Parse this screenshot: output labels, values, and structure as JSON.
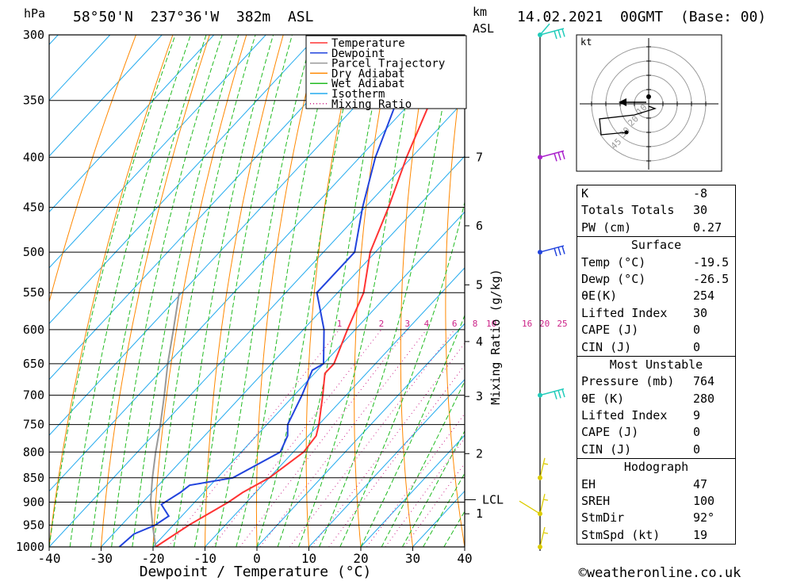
{
  "header": {
    "location": "58°50'N  237°36'W  382m  ASL",
    "datetime": "14.02.2021  00GMT  (Base: 00)",
    "hpa_label": "hPa",
    "km_label": "km",
    "asl_label": "ASL"
  },
  "chart_data": {
    "type": "skew-t",
    "xlabel": "Dewpoint / Temperature (°C)",
    "ylabel_right": "Mixing Ratio (g/kg)",
    "x_ticks": [
      -40,
      -30,
      -20,
      -10,
      0,
      10,
      20,
      30,
      40
    ],
    "pressure_levels": [
      300,
      350,
      400,
      450,
      500,
      550,
      600,
      650,
      700,
      750,
      800,
      850,
      900,
      950,
      1000
    ],
    "km_ticks": [
      {
        "label": "7",
        "p": 400
      },
      {
        "label": "6",
        "p": 470
      },
      {
        "label": "5",
        "p": 540
      },
      {
        "label": "4",
        "p": 617
      },
      {
        "label": "3",
        "p": 702
      },
      {
        "label": "2",
        "p": 803
      },
      {
        "label": "1",
        "p": 925
      }
    ],
    "lcl": {
      "label": "LCL",
      "p": 895
    },
    "mixing_ratio_labels": [
      "1",
      "2",
      "3",
      "4",
      "6",
      "8",
      "10",
      "16",
      "20",
      "25"
    ],
    "legend": [
      {
        "name": "Temperature",
        "color": "#ff3333"
      },
      {
        "name": "Dewpoint",
        "color": "#2244dd"
      },
      {
        "name": "Parcel Trajectory",
        "color": "#999999"
      },
      {
        "name": "Dry Adiabat",
        "color": "#ff8800"
      },
      {
        "name": "Wet Adiabat",
        "color": "#22bb22"
      },
      {
        "name": "Isotherm",
        "color": "#22aaee"
      },
      {
        "name": "Mixing Ratio",
        "color": "#cc2288"
      }
    ],
    "temperature": [
      {
        "p": 1000,
        "t": -19.5
      },
      {
        "p": 950,
        "t": -17
      },
      {
        "p": 900,
        "t": -13.5
      },
      {
        "p": 880,
        "t": -12.5
      },
      {
        "p": 850,
        "t": -10
      },
      {
        "p": 800,
        "t": -8
      },
      {
        "p": 770,
        "t": -8.5
      },
      {
        "p": 750,
        "t": -10
      },
      {
        "p": 700,
        "t": -14.5
      },
      {
        "p": 665,
        "t": -18
      },
      {
        "p": 650,
        "t": -18
      },
      {
        "p": 600,
        "t": -21.5
      },
      {
        "p": 550,
        "t": -25
      },
      {
        "p": 500,
        "t": -31
      },
      {
        "p": 450,
        "t": -35.5
      },
      {
        "p": 400,
        "t": -41
      },
      {
        "p": 350,
        "t": -46.5
      },
      {
        "p": 320,
        "t": -50
      },
      {
        "p": 300,
        "t": -54
      }
    ],
    "dewpoint": [
      {
        "p": 1000,
        "t": -26.5
      },
      {
        "p": 970,
        "t": -26
      },
      {
        "p": 950,
        "t": -23.5
      },
      {
        "p": 930,
        "t": -22.5
      },
      {
        "p": 905,
        "t": -26
      },
      {
        "p": 880,
        "t": -24.5
      },
      {
        "p": 865,
        "t": -24
      },
      {
        "p": 850,
        "t": -17
      },
      {
        "p": 800,
        "t": -12.5
      },
      {
        "p": 770,
        "t": -14
      },
      {
        "p": 750,
        "t": -16
      },
      {
        "p": 700,
        "t": -18.5
      },
      {
        "p": 660,
        "t": -21
      },
      {
        "p": 650,
        "t": -20
      },
      {
        "p": 600,
        "t": -26
      },
      {
        "p": 550,
        "t": -34
      },
      {
        "p": 500,
        "t": -34
      },
      {
        "p": 450,
        "t": -40.5
      },
      {
        "p": 400,
        "t": -47
      },
      {
        "p": 350,
        "t": -53
      },
      {
        "p": 300,
        "t": -60
      }
    ],
    "parcel": [
      {
        "p": 1000,
        "t": -19.5
      },
      {
        "p": 950,
        "t": -24
      },
      {
        "p": 900,
        "t": -28.5
      },
      {
        "p": 850,
        "t": -32.5
      },
      {
        "p": 800,
        "t": -36.5
      },
      {
        "p": 750,
        "t": -40.5
      },
      {
        "p": 700,
        "t": -45
      },
      {
        "p": 650,
        "t": -50
      },
      {
        "p": 600,
        "t": -55
      },
      {
        "p": 550,
        "t": -60.5
      }
    ],
    "wind_barbs": [
      {
        "p": 300,
        "color": "#22ccbb"
      },
      {
        "p": 400,
        "color": "#aa22cc"
      },
      {
        "p": 500,
        "color": "#2244dd"
      },
      {
        "p": 700,
        "color": "#22ccbb"
      },
      {
        "p": 850,
        "color": "#ddcc00"
      },
      {
        "p": 925,
        "color": "#ddcc00"
      },
      {
        "p": 1000,
        "color": "#ddcc00"
      }
    ]
  },
  "hodograph": {
    "unit_label": "kt",
    "ring_labels": [
      "10",
      "20",
      "30",
      "45"
    ]
  },
  "indices": {
    "k_label": "K",
    "k_value": "-8",
    "tt_label": "Totals Totals",
    "tt_value": "30",
    "pw_label": "PW (cm)",
    "pw_value": "0.27"
  },
  "surface": {
    "title": "Surface",
    "rows": [
      {
        "label": "Temp (°C)",
        "value": "-19.5"
      },
      {
        "label": "Dewp (°C)",
        "value": "-26.5"
      },
      {
        "label": "θE(K)",
        "value": "254"
      },
      {
        "label": "Lifted Index",
        "value": "30"
      },
      {
        "label": "CAPE (J)",
        "value": "0"
      },
      {
        "label": "CIN (J)",
        "value": "0"
      }
    ]
  },
  "most_unstable": {
    "title": "Most Unstable",
    "rows": [
      {
        "label": "Pressure (mb)",
        "value": "764"
      },
      {
        "label": "θE (K)",
        "value": "280"
      },
      {
        "label": "Lifted Index",
        "value": "9"
      },
      {
        "label": "CAPE (J)",
        "value": "0"
      },
      {
        "label": "CIN (J)",
        "value": "0"
      }
    ]
  },
  "hodograph_stats": {
    "title": "Hodograph",
    "rows": [
      {
        "label": "EH",
        "value": "47"
      },
      {
        "label": "SREH",
        "value": "100"
      },
      {
        "label": "StmDir",
        "value": "92°"
      },
      {
        "label": "StmSpd (kt)",
        "value": "19"
      }
    ]
  },
  "footer": {
    "copyright": "©weatheronline.co.uk"
  }
}
